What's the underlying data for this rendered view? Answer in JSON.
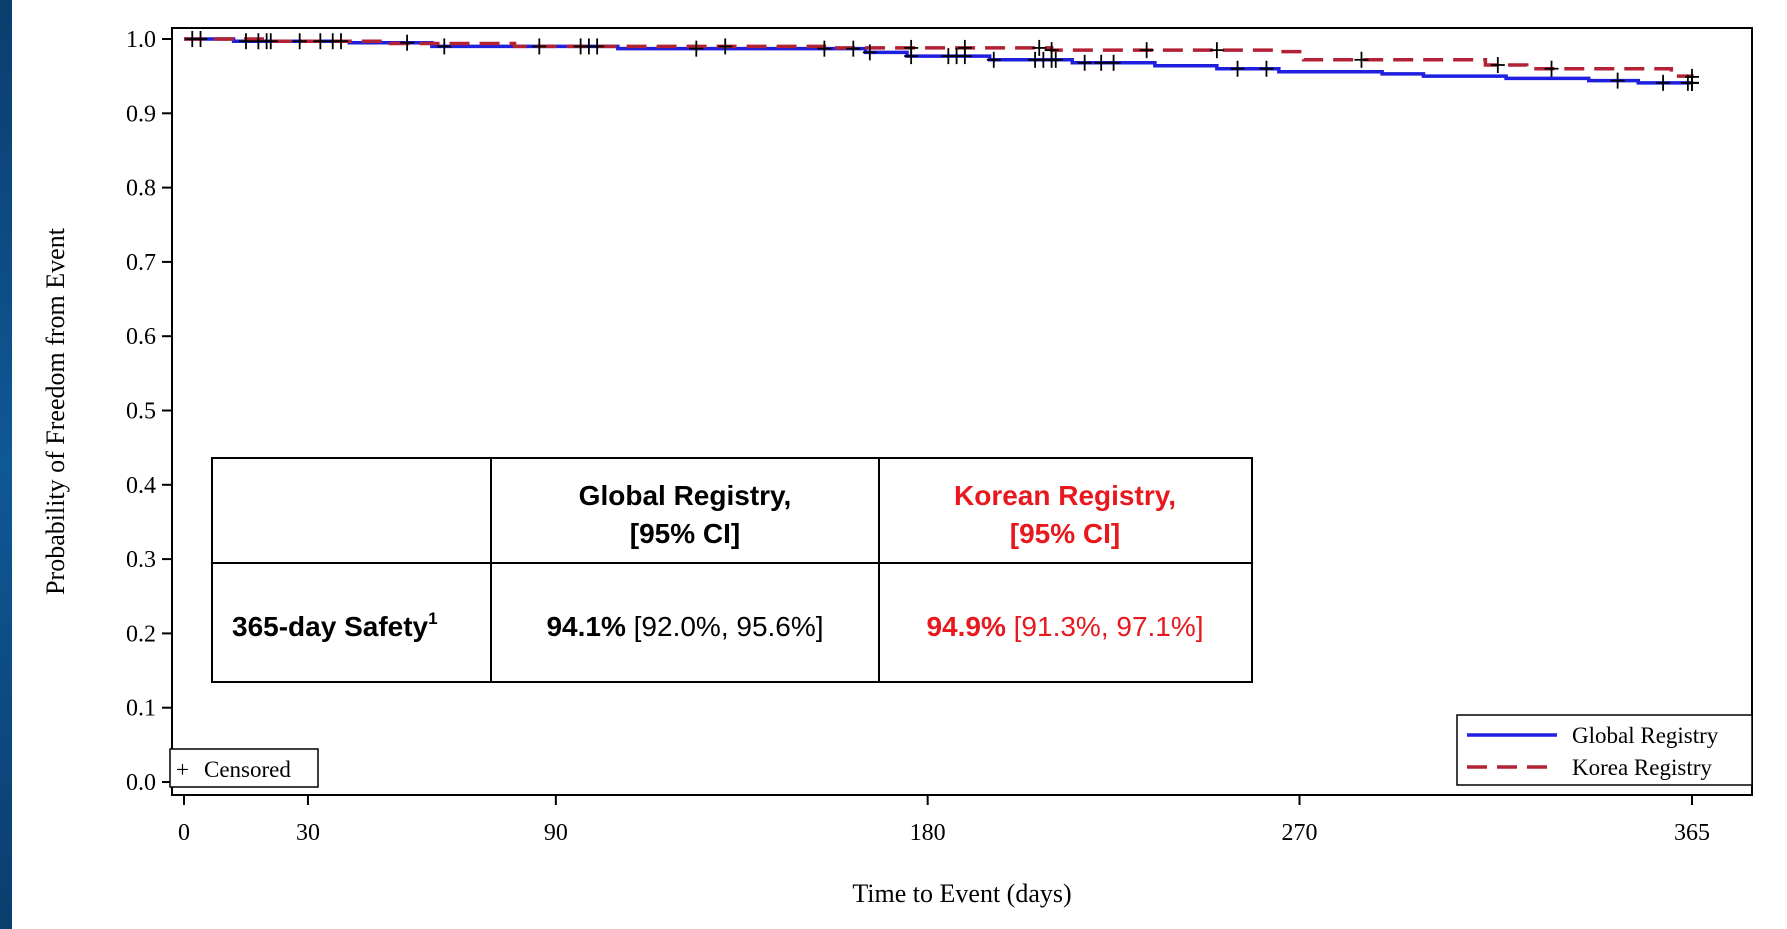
{
  "chart_data": {
    "type": "line",
    "xlabel": "Time to Event (days)",
    "ylabel": "Probability of Freedom from Event",
    "xlim": [
      0,
      365
    ],
    "ylim": [
      0.0,
      1.0
    ],
    "x_ticks": [
      0,
      30,
      90,
      180,
      270,
      365
    ],
    "y_ticks": [
      0.0,
      0.1,
      0.2,
      0.3,
      0.4,
      0.5,
      0.6,
      0.7,
      0.8,
      0.9,
      1.0
    ],
    "y_tick_labels": [
      "0.0",
      "0.1",
      "0.2",
      "0.3",
      "0.4",
      "0.5",
      "0.6",
      "0.7",
      "0.8",
      "0.9",
      "1.0"
    ],
    "step": true,
    "series": [
      {
        "name": "Global Registry",
        "color": "#1f1fe0",
        "dash": "solid",
        "points": [
          [
            0,
            1.0
          ],
          [
            12,
            0.997
          ],
          [
            40,
            0.995
          ],
          [
            60,
            0.99
          ],
          [
            105,
            0.987
          ],
          [
            165,
            0.982
          ],
          [
            175,
            0.977
          ],
          [
            195,
            0.972
          ],
          [
            215,
            0.968
          ],
          [
            235,
            0.964
          ],
          [
            250,
            0.96
          ],
          [
            265,
            0.956
          ],
          [
            290,
            0.953
          ],
          [
            300,
            0.95
          ],
          [
            320,
            0.947
          ],
          [
            340,
            0.944
          ],
          [
            352,
            0.941
          ],
          [
            365,
            0.941
          ]
        ],
        "censored": [
          2,
          4,
          15,
          18,
          20,
          28,
          33,
          36,
          38,
          54,
          63,
          86,
          96,
          100,
          124,
          155,
          162,
          166,
          176,
          185,
          187,
          189,
          196,
          206,
          208,
          210,
          211,
          218,
          222,
          225,
          255,
          262,
          347,
          358,
          370,
          372,
          364,
          365
        ]
      },
      {
        "name": "Korea Registry",
        "color": "#b22234",
        "dash": "dashed",
        "points": [
          [
            0,
            1.0
          ],
          [
            20,
            0.997
          ],
          [
            50,
            0.994
          ],
          [
            80,
            0.99
          ],
          [
            155,
            0.988
          ],
          [
            210,
            0.985
          ],
          [
            265,
            0.983
          ],
          [
            271,
            0.972
          ],
          [
            315,
            0.965
          ],
          [
            325,
            0.96
          ],
          [
            360,
            0.95
          ],
          [
            365,
            0.949
          ]
        ],
        "censored": [
          21,
          98,
          131,
          176,
          189,
          207,
          210,
          233,
          250,
          285,
          318,
          331,
          365
        ]
      }
    ],
    "censored_label": "Censored",
    "legend_position": "bottom-right",
    "grid": false
  },
  "inset_table": {
    "header": {
      "global_line1": "Global Registry,",
      "global_line2": "[95% CI]",
      "korean_line1": "Korean Registry,",
      "korean_line2": "[95% CI]"
    },
    "row": {
      "label": "365-day Safety",
      "label_sup": "1",
      "global_value": "94.1%",
      "global_ci": "[92.0%, 95.6%]",
      "korean_value": "94.9%",
      "korean_ci": "[91.3%, 97.1%]"
    },
    "colors": {
      "korean": "#e8181f",
      "global": "#000000"
    }
  }
}
